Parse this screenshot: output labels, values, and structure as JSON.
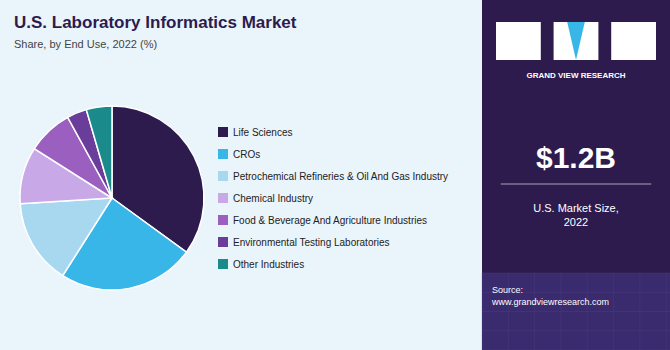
{
  "chart_data": {
    "type": "pie",
    "title": "U.S. Laboratory Informatics Market",
    "subtitle": "Share, by End Use, 2022 (%)",
    "categories": [
      "Life Sciences",
      "CROs",
      "Petrochemical Refineries & Oil And Gas Industry",
      "Chemical Industry",
      "Food & Beverage And Agriculture Industries",
      "Environmental Testing Laboratories",
      "Other Industries"
    ],
    "values": [
      35.0,
      24.0,
      15.0,
      10.0,
      8.0,
      3.5,
      4.5
    ],
    "colors": [
      "#2d1b4e",
      "#38b6e8",
      "#a8d8f0",
      "#c9a8e8",
      "#9b5fc0",
      "#6a3d9a",
      "#1a8a8a"
    ],
    "legend": "right",
    "annotations": [
      "GRAND VIEW RESEARCH",
      "$1.2B",
      "U.S. Market Size,\n2022",
      "Source:\nwww.grandviewresearch.com"
    ]
  }
}
